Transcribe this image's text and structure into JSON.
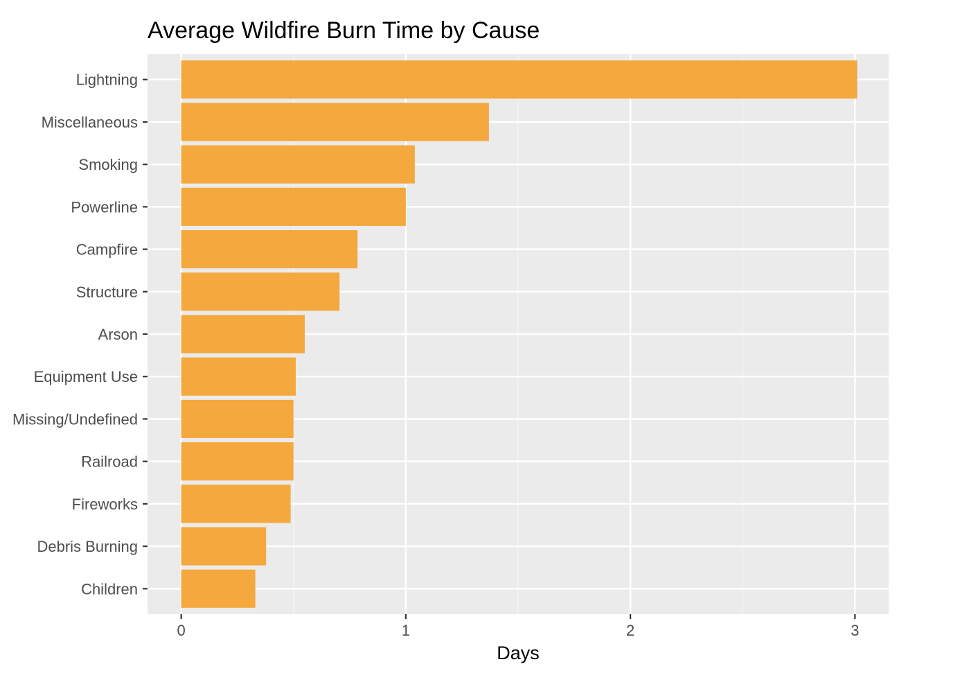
{
  "chart_data": {
    "type": "bar",
    "orientation": "horizontal",
    "title": "Average Wildfire Burn Time by Cause",
    "xlabel": "Days",
    "ylabel": "",
    "categories": [
      "Lightning",
      "Miscellaneous",
      "Smoking",
      "Powerline",
      "Campfire",
      "Structure",
      "Arson",
      "Equipment Use",
      "Missing/Undefined",
      "Railroad",
      "Fireworks",
      "Debris Burning",
      "Children"
    ],
    "values": [
      3.01,
      1.37,
      1.04,
      1.0,
      0.785,
      0.705,
      0.55,
      0.51,
      0.5,
      0.5,
      0.487,
      0.378,
      0.33
    ],
    "xlim": [
      -0.15,
      3.15
    ],
    "x_ticks": [
      "0",
      "1",
      "2",
      "3"
    ],
    "grid": true,
    "legend": "none",
    "colors": {
      "bar": "#F4A83D",
      "panel_background": "#EBEBEB",
      "grid_major": "#FFFFFF",
      "grid_minor": "#F5F5F5"
    }
  }
}
